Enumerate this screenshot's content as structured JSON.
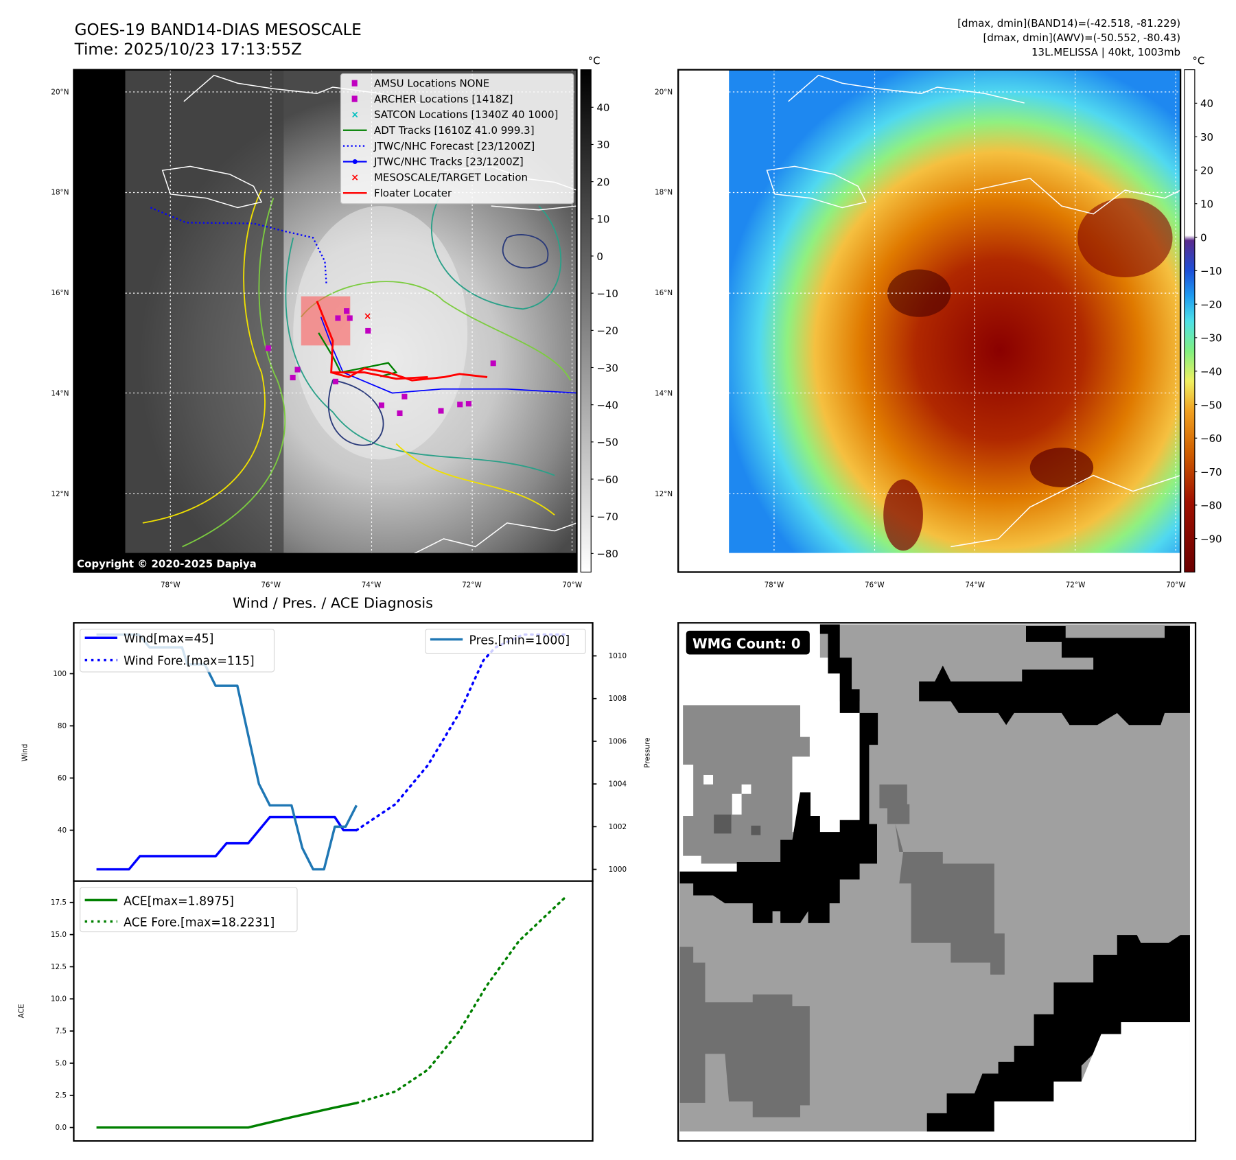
{
  "header": {
    "title_line1": "GOES-19 BAND14-DIAS MESOSCALE",
    "title_line2": "Time: 2025/10/23 17:13:55Z",
    "stats_line1": "[dmax, dmin](BAND14)=(-42.518, -81.229)",
    "stats_line2": "[dmax, dmin](AWV)=(-50.552, -80.43)",
    "stats_line3": "13L.MELISSA | 40kt, 1003mb"
  },
  "map": {
    "lat_ticks": [
      {
        "v": 20,
        "label": "20°N"
      },
      {
        "v": 18,
        "label": "18°N"
      },
      {
        "v": 16,
        "label": "16°N"
      },
      {
        "v": 14,
        "label": "14°N"
      },
      {
        "v": 12,
        "label": "12°N"
      }
    ],
    "lon_ticks": [
      {
        "v": -78,
        "label": "78°W"
      },
      {
        "v": -76,
        "label": "76°W"
      },
      {
        "v": -74,
        "label": "74°W"
      },
      {
        "v": -72,
        "label": "72°W"
      },
      {
        "v": -70,
        "label": "70°W"
      }
    ],
    "copyright": "Copyright © 2020-2025 Dapiya",
    "legend": [
      {
        "label": "AMSU Locations NONE",
        "color": "#c000c0",
        "kind": "square"
      },
      {
        "label": "ARCHER Locations [1418Z]",
        "color": "#c000c0",
        "kind": "square"
      },
      {
        "label": "SATCON Locations [1340Z 40 1000]",
        "color": "#00bfbf",
        "kind": "x"
      },
      {
        "label": "ADT Tracks [1610Z 41.0 999.3]",
        "color": "#008000",
        "kind": "line"
      },
      {
        "label": "JTWC/NHC Forecast [23/1200Z]",
        "color": "#0000ff",
        "kind": "dotted"
      },
      {
        "label": "JTWC/NHC Tracks [23/1200Z]",
        "color": "#0000ff",
        "kind": "marker-line"
      },
      {
        "label": "MESOSCALE/TARGET Location",
        "color": "#ff0000",
        "kind": "x"
      },
      {
        "label": "Floater Locater",
        "color": "#ff0000",
        "kind": "line"
      }
    ],
    "colorbar_unit": "°C",
    "colorbar_left_ticks": [
      40,
      30,
      20,
      10,
      0,
      -10,
      -20,
      -30,
      -40,
      -50,
      -60,
      -70,
      -80
    ],
    "colorbar_right_ticks": [
      40,
      30,
      20,
      10,
      0,
      -10,
      -20,
      -30,
      -40,
      -50,
      -60,
      -70,
      -80,
      -90
    ]
  },
  "wmg": {
    "label": "WMG Count: 0"
  },
  "chart_data": [
    {
      "type": "line",
      "title": "Wind / Pres. / ACE Diagnosis",
      "ylabel": "Wind",
      "ylabel_right": "Pressure",
      "ylim": [
        20.5,
        119.5
      ],
      "ylim_right": [
        999.45,
        1011.55
      ],
      "xlim": [
        -2.1,
        45.8
      ],
      "yticks": [
        40,
        60,
        80,
        100
      ],
      "yticks_right": [
        1000,
        1002,
        1004,
        1006,
        1008,
        1010
      ],
      "series": [
        {
          "name": "Wind[max=45]",
          "color": "#0000ff",
          "style": "solid",
          "axis": "left",
          "x": [
            0,
            3,
            4,
            11,
            12,
            14,
            16,
            22,
            22.8,
            24
          ],
          "y": [
            25,
            25,
            30,
            30,
            35,
            35,
            45,
            45,
            40,
            40
          ]
        },
        {
          "name": "Wind Fore.[max=115]",
          "color": "#0000ff",
          "style": "dotted",
          "axis": "left",
          "x": [
            24,
            27.6,
            30.6,
            33.5,
            35.7,
            36.8,
            39.4,
            43.4
          ],
          "y": [
            40,
            50,
            65,
            85,
            105,
            110,
            115,
            115
          ]
        },
        {
          "name": "Pres.[min=1000]",
          "color": "#1f77b4",
          "style": "solid",
          "axis": "right",
          "x": [
            0,
            3.9,
            4.9,
            7.9,
            8.4,
            10,
            11,
            13,
            15,
            16,
            18,
            19,
            20,
            21,
            22,
            23,
            24
          ],
          "y": [
            1011,
            1011,
            1010.4,
            1010.4,
            1009.6,
            1009.6,
            1008.6,
            1008.6,
            1004,
            1003,
            1003,
            1001,
            1000,
            1000,
            1002,
            1002,
            1003
          ]
        }
      ]
    },
    {
      "type": "line",
      "ylabel": "ACE",
      "ylim": [
        -1.05,
        19.16
      ],
      "xlim": [
        -2.1,
        45.8
      ],
      "yticks": [
        0.0,
        2.5,
        5.0,
        7.5,
        10.0,
        12.5,
        15.0,
        17.5
      ],
      "ytick_labels": [
        "0.0",
        "2.5",
        "5.0",
        "7.5",
        "10.0",
        "12.5",
        "15.0",
        "17.5"
      ],
      "series": [
        {
          "name": "ACE[max=1.8975]",
          "color": "#008000",
          "style": "solid",
          "x": [
            0,
            14,
            18,
            22,
            24
          ],
          "y": [
            0,
            0,
            0.8,
            1.55,
            1.9
          ]
        },
        {
          "name": "ACE Fore.[max=18.2231]",
          "color": "#008000",
          "style": "dotted",
          "x": [
            24,
            27.6,
            30.6,
            33.5,
            36,
            39,
            43.4
          ],
          "y": [
            1.9,
            2.8,
            4.5,
            7.5,
            11,
            14.5,
            18
          ]
        }
      ]
    }
  ]
}
